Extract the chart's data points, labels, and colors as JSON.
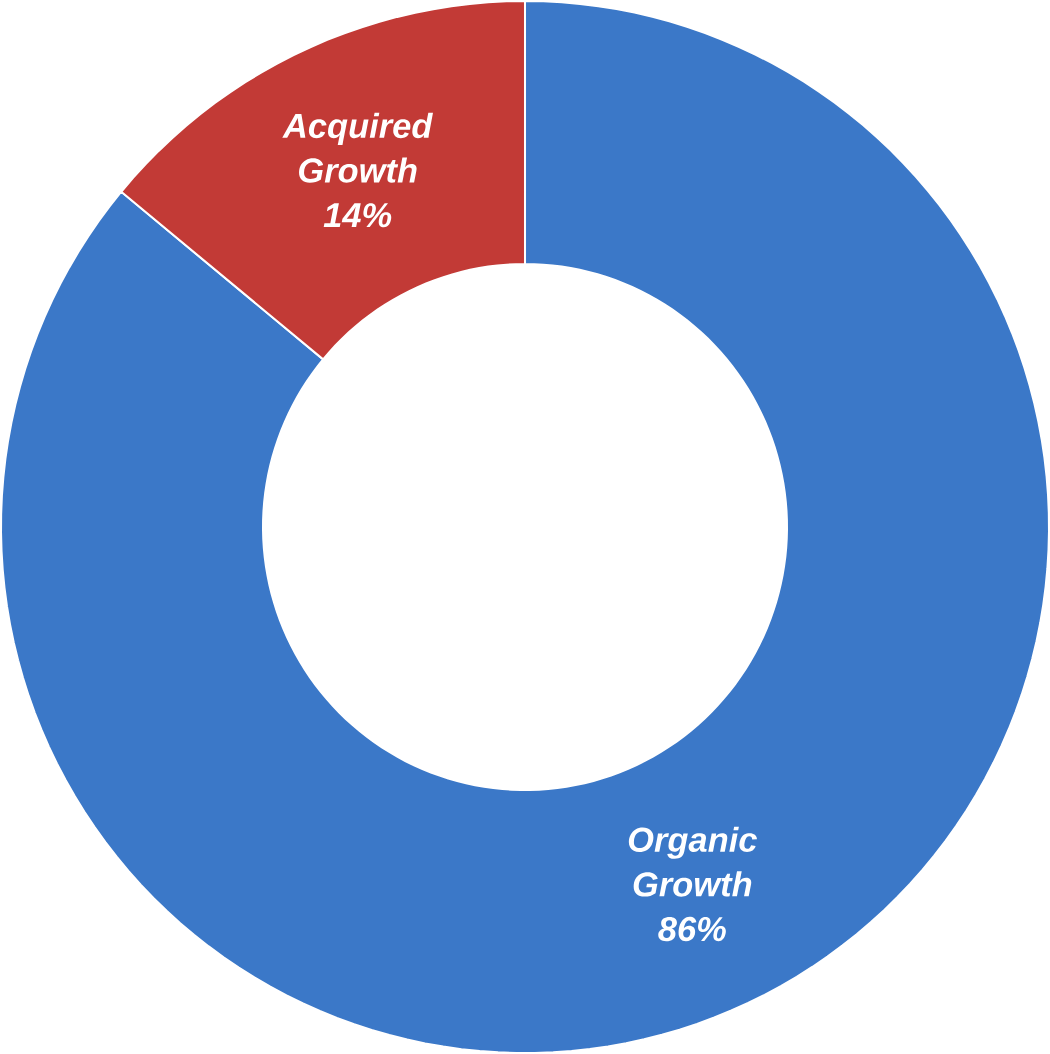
{
  "chart_data": {
    "type": "donut",
    "categories": [
      "Organic Growth",
      "Acquired Growth"
    ],
    "values": [
      86,
      14
    ],
    "value_labels": [
      "86%",
      "14%"
    ],
    "colors": [
      "#3b78c8",
      "#c23a36"
    ]
  }
}
